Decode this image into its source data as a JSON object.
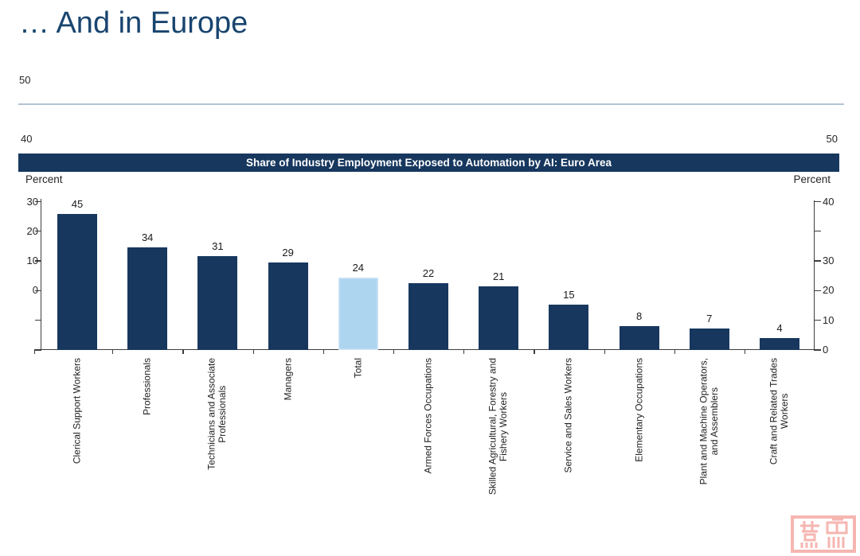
{
  "slide": {
    "title": "… And in Europe"
  },
  "stray_axis": {
    "top_label": "50",
    "left_label": "40",
    "right_label": "50"
  },
  "chart_data": {
    "type": "bar",
    "title": "Share of Industry Employment Exposed to Automation by AI: Euro Area",
    "unit_label_left": "Percent",
    "unit_label_right": "Percent",
    "categories": [
      "Clerical Support Workers",
      "Professionals",
      "Technicians and Associate\nProfessionals",
      "Managers",
      "Total",
      "Armed Forces Occupations",
      "Skilled Agricultural, Forestry and\nFishery Workers",
      "Service and Sales Workers",
      "Elementary Occupations",
      "Plant and Machine Operators,\nand Assemblers",
      "Craft and Related Trades\nWorkers"
    ],
    "values": [
      45,
      34,
      31,
      29,
      24,
      22,
      21,
      15,
      8,
      7,
      4
    ],
    "highlight_index": 4,
    "highlight_category": "Total",
    "left_axis_ticks": [
      "30",
      "20",
      "10",
      "0",
      "",
      ""
    ],
    "right_axis_ticks": [
      "40",
      "",
      "30",
      "20",
      "10",
      "0"
    ],
    "bar_color": "#17375E",
    "highlight_color": "#AED5F0",
    "ylim_right": [
      0,
      40
    ],
    "legend": "none",
    "grid": "off"
  },
  "watermark": {
    "type": "seal-stamp",
    "color": "#F6B6B0"
  }
}
